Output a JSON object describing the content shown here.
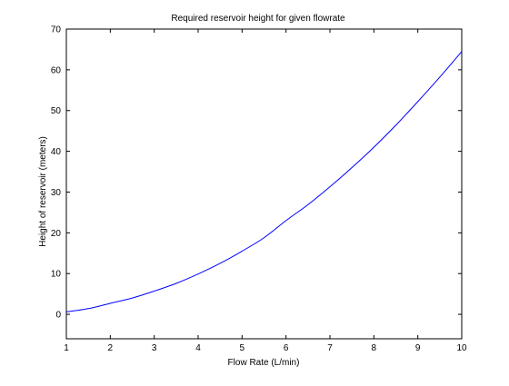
{
  "chart_data": {
    "type": "line",
    "title": "Required reservoir height for given flowrate",
    "xlabel": "Flow Rate (L/min)",
    "ylabel": "Height of reservoir (meters)",
    "xlim": [
      1,
      10
    ],
    "ylim": [
      -6,
      70
    ],
    "xticks": [
      1,
      2,
      3,
      4,
      5,
      6,
      7,
      8,
      9,
      10
    ],
    "yticks": [
      0,
      10,
      20,
      30,
      40,
      50,
      60,
      70
    ],
    "grid": false,
    "legend": "none",
    "series": [
      {
        "color": "#0000ff",
        "x": [
          1,
          1.5,
          2,
          2.5,
          3,
          3.5,
          4,
          4.5,
          5,
          5.5,
          6,
          6.5,
          7,
          7.5,
          8,
          8.5,
          9,
          9.5,
          10
        ],
        "y": [
          0.6,
          1.4,
          2.7,
          4.0,
          5.7,
          7.6,
          9.9,
          12.5,
          15.5,
          18.8,
          23.0,
          26.9,
          31.3,
          36.0,
          41.0,
          46.4,
          52.2,
          58.2,
          64.5
        ]
      }
    ]
  }
}
